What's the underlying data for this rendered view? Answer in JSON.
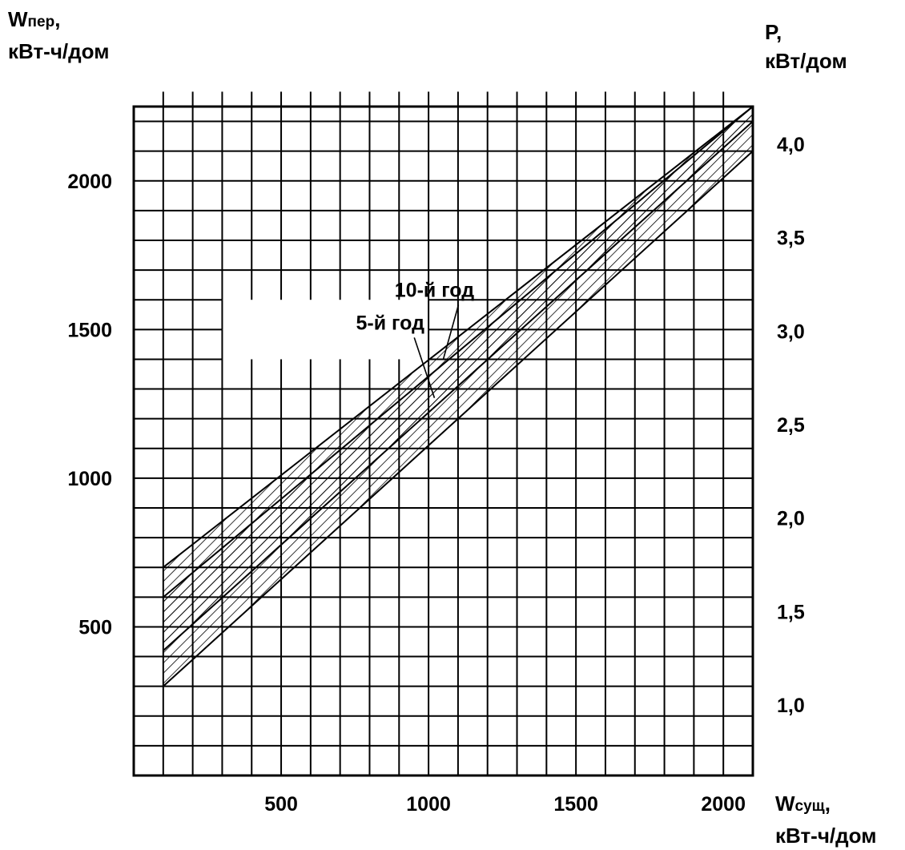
{
  "chart_data": {
    "type": "area",
    "left_axis": {
      "label_main": "W",
      "label_sub": "пер",
      "label_suffix": ",",
      "units": "кВт-ч/дом",
      "ticks": [
        {
          "value": 500,
          "label": "500"
        },
        {
          "value": 1000,
          "label": "1000"
        },
        {
          "value": 1500,
          "label": "1500"
        },
        {
          "value": 2000,
          "label": "2000"
        }
      ],
      "range": [
        0,
        2250
      ]
    },
    "right_axis": {
      "label": "P,",
      "units": "кВт/дом",
      "ticks": [
        {
          "value": 1.0,
          "label": "1,0"
        },
        {
          "value": 1.5,
          "label": "1,5"
        },
        {
          "value": 2.0,
          "label": "2,0"
        },
        {
          "value": 2.5,
          "label": "2,5"
        },
        {
          "value": 3.0,
          "label": "3,0"
        },
        {
          "value": 3.5,
          "label": "3,5"
        },
        {
          "value": 4.0,
          "label": "4,0"
        }
      ]
    },
    "x_axis": {
      "label_main": "W",
      "label_sub": "сущ",
      "label_suffix": ",",
      "units": "кВт-ч/дом",
      "ticks": [
        {
          "value": 500,
          "label": "500"
        },
        {
          "value": 1000,
          "label": "1000"
        },
        {
          "value": 1500,
          "label": "1500"
        },
        {
          "value": 2000,
          "label": "2000"
        }
      ],
      "range": [
        0,
        2100
      ]
    },
    "grid": true,
    "grid_step_x": 100,
    "grid_step_y": 100,
    "series": [
      {
        "name": "5-й год",
        "lower": [
          [
            100,
            300
          ],
          [
            2100,
            2100
          ]
        ],
        "upper": [
          [
            100,
            600
          ],
          [
            2100,
            2250
          ]
        ]
      },
      {
        "name": "10-й год",
        "lower": [
          [
            100,
            420
          ],
          [
            2100,
            2200
          ]
        ],
        "upper": [
          [
            100,
            700
          ],
          [
            2100,
            2250
          ]
        ]
      }
    ],
    "annotations": [
      {
        "text": "10-й год",
        "at": [
          1020,
          1610
        ],
        "points_to": [
          1050,
          1400
        ]
      },
      {
        "text": "5-й год",
        "at": [
          870,
          1500
        ],
        "points_to": [
          1020,
          1270
        ]
      }
    ],
    "label_box": {
      "x_range": [
        300,
        1000
      ],
      "y_range": [
        1350,
        1620
      ]
    }
  }
}
